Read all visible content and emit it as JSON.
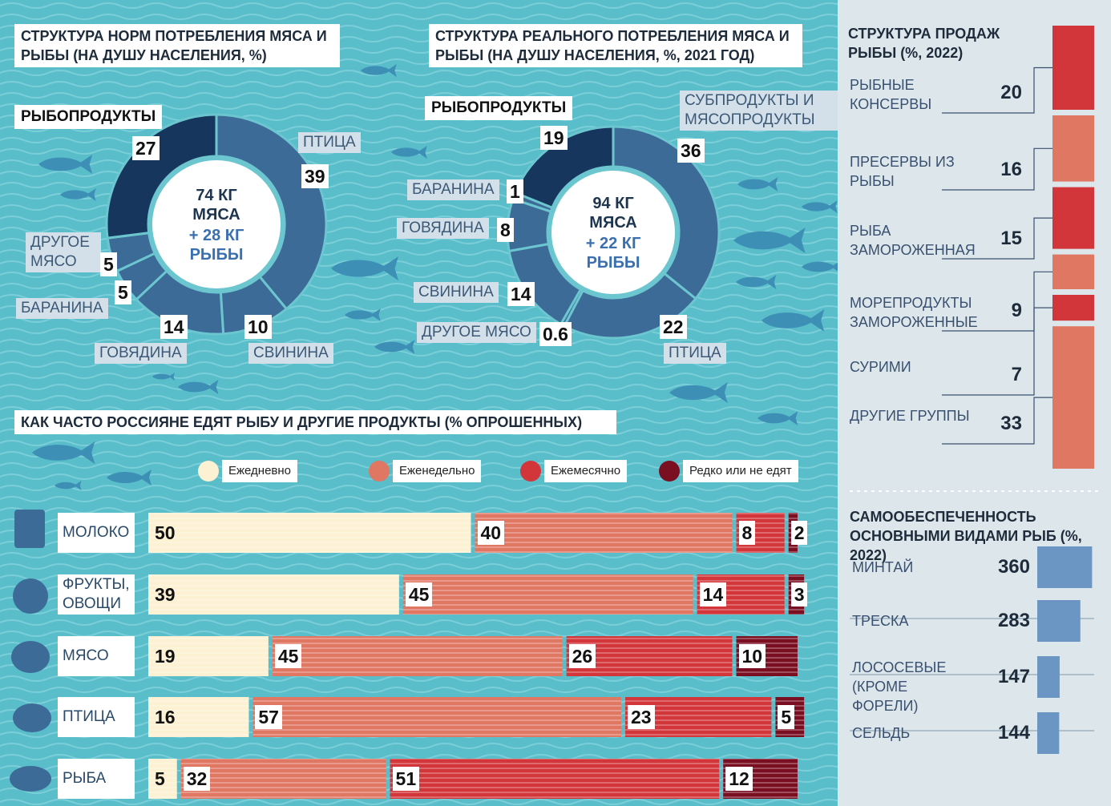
{
  "chart_data": [
    {
      "type": "donut",
      "title": "СТРУКТУРА НОРМ ПОТРЕБЛЕНИЯ МЯСА И РЫБЫ (НА ДУШУ НАСЕЛЕНИЯ, %)",
      "center_text": "74 КГ МЯСА",
      "center_subtext": "+ 28 КГ РЫБЫ",
      "categories": [
        "ПТИЦА",
        "СВИНИНА",
        "ГОВЯДИНА",
        "БАРАНИНА",
        "ДРУГОЕ МЯСО",
        "РЫБОПРОДУКТЫ"
      ],
      "values": [
        39,
        10,
        14,
        5,
        5,
        27
      ],
      "colors": [
        "#3d6b98",
        "#3d6b98",
        "#3d6b98",
        "#3d6b98",
        "#3d6b98",
        "#17365d"
      ]
    },
    {
      "type": "donut",
      "title": "СТРУКТУРА РЕАЛЬНОГО ПОТРЕБЛЕНИЯ МЯСА И РЫБЫ (НА ДУШУ НАСЕЛЕНИЯ, %, 2021 ГОД)",
      "center_text": "94 КГ МЯСА",
      "center_subtext": "+ 22 КГ РЫБЫ",
      "categories": [
        "СУБПРОДУКТЫ И МЯСОПРОДУКТЫ",
        "ПТИЦА",
        "ДРУГОЕ МЯСО",
        "СВИНИНА",
        "ГОВЯДИНА",
        "БАРАНИНА",
        "РЫБОПРОДУКТЫ"
      ],
      "values": [
        36,
        22,
        0.6,
        14,
        8,
        1,
        19
      ],
      "colors": [
        "#3d6b98",
        "#3d6b98",
        "#3d6b98",
        "#3d6b98",
        "#3d6b98",
        "#3d6b98",
        "#17365d"
      ]
    },
    {
      "type": "stacked_bar",
      "title": "КАК ЧАСТО РОССИЯНЕ ЕДЯТ РЫБУ И ДРУГИЕ ПРОДУКТЫ (% ОПРОШЕННЫХ)",
      "categories": [
        "МОЛОКО",
        "ФРУКТЫ, ОВОЩИ",
        "МЯСО",
        "ПТИЦА",
        "РЫБА"
      ],
      "series": [
        {
          "name": "Ежедневно",
          "color": "#fcf1d2",
          "values": [
            50,
            39,
            19,
            16,
            5
          ]
        },
        {
          "name": "Еженедельно",
          "color": "#df7762",
          "values": [
            40,
            45,
            45,
            57,
            32
          ]
        },
        {
          "name": "Ежемесячно",
          "color": "#d3363a",
          "values": [
            8,
            14,
            26,
            23,
            51
          ]
        },
        {
          "name": "Редко или не едят",
          "color": "#7b0f22",
          "values": [
            2,
            3,
            10,
            5,
            12
          ]
        }
      ]
    },
    {
      "type": "stacked_column",
      "title": "СТРУКТУРА ПРОДАЖ РЫБЫ (%, 2022)",
      "categories": [
        "РЫБНЫЕ КОНСЕРВЫ",
        "ПРЕСЕРВЫ ИЗ РЫБЫ",
        "РЫБА ЗАМОРОЖЕННАЯ",
        "МОРЕПРОДУКТЫ ЗАМОРОЖЕННЫЕ",
        "СУРИМИ",
        "ДРУГИЕ ГРУППЫ"
      ],
      "values": [
        20,
        16,
        15,
        9,
        7,
        33
      ],
      "colors": [
        "#d3363a",
        "#e07762",
        "#d3363a",
        "#e07762",
        "#d3363a",
        "#e07762"
      ]
    },
    {
      "type": "bar",
      "title": "САМООБЕСПЕЧЕННОСТЬ ОСНОВНЫМИ ВИДАМИ РЫБ (%, 2022)",
      "categories": [
        "МИНТАЙ",
        "ТРЕСКА",
        "ЛОСОСЕВЫЕ (КРОМЕ ФОРЕЛИ)",
        "СЕЛЬДЬ"
      ],
      "values": [
        360,
        283,
        147,
        144
      ],
      "color": "#6b95c3"
    }
  ]
}
